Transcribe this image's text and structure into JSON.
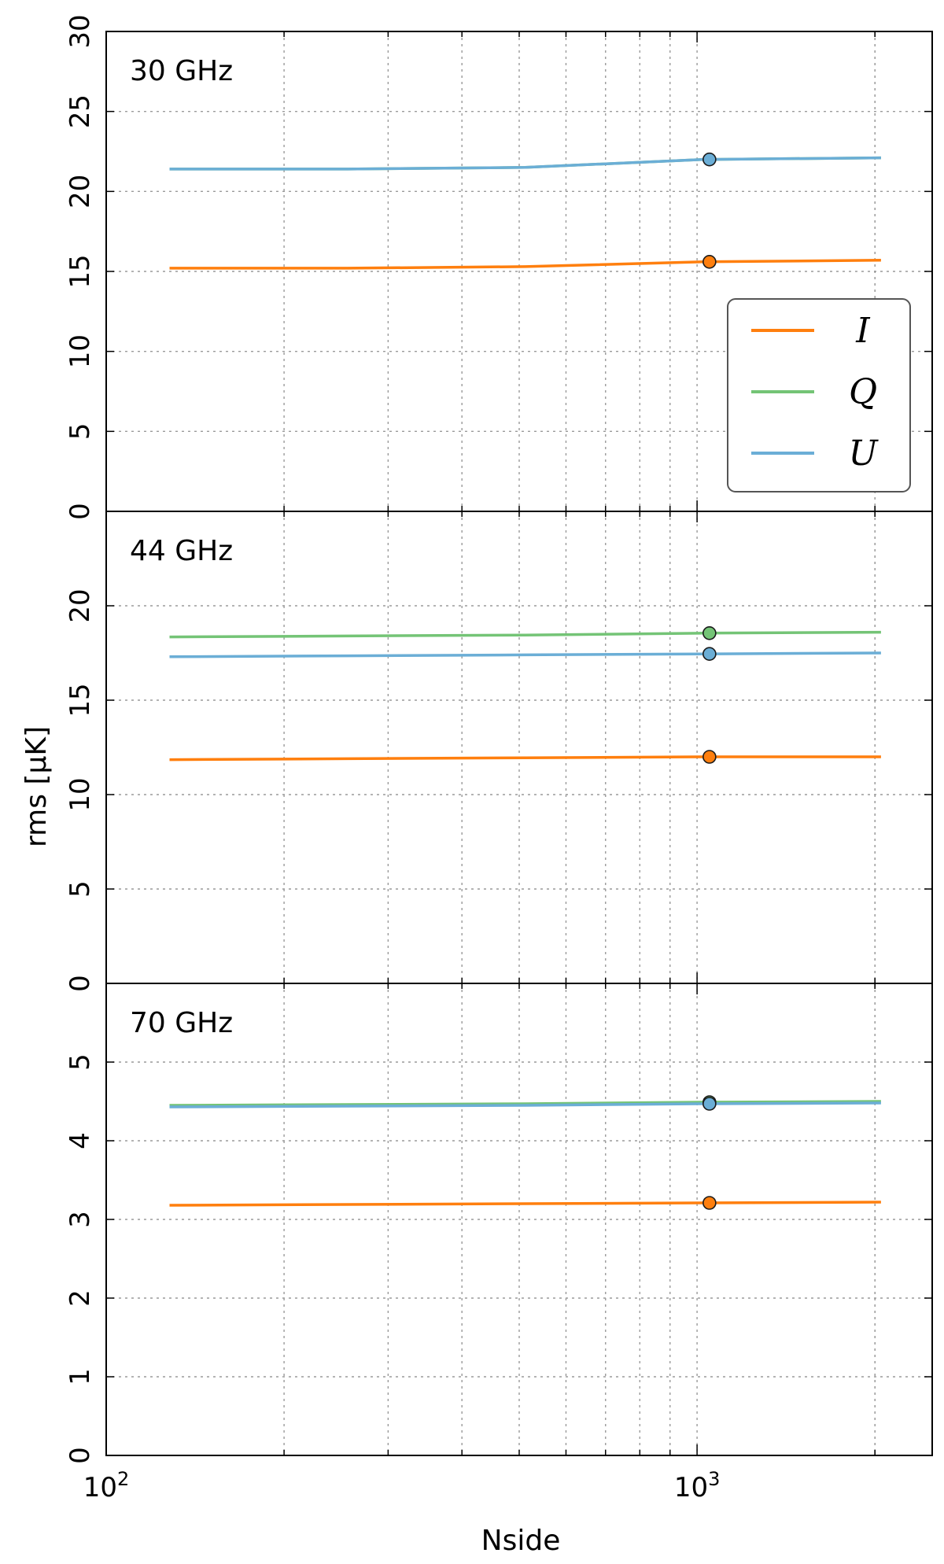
{
  "chart_data": {
    "type": "line",
    "xlabel": "Nside",
    "ylabel": "rms [μK]",
    "xscale": "log",
    "xlim": [
      100,
      2500
    ],
    "x_tick_labels": [
      {
        "value": 100,
        "base": "10",
        "exp": "2"
      },
      {
        "value": 1000,
        "base": "10",
        "exp": "3"
      }
    ],
    "grid": true,
    "legend": {
      "placement": "right, first panel",
      "entries": [
        {
          "label": "I",
          "color": "#ff7f0e"
        },
        {
          "label": "Q",
          "color": "#74c476"
        },
        {
          "label": "U",
          "color": "#6baed6"
        }
      ]
    },
    "panels": [
      {
        "label": "30 GHz",
        "ylim": [
          0,
          30
        ],
        "yticks": [
          "0",
          "5",
          "10",
          "15",
          "20",
          "25",
          "30"
        ],
        "x": [
          128,
          256,
          512,
          1024,
          2048
        ],
        "series": [
          {
            "name": "I",
            "color": "#ff7f0e",
            "values": [
              15.2,
              15.2,
              15.3,
              15.6,
              15.7
            ]
          },
          {
            "name": "Q",
            "color": "#74c476",
            "values": [
              21.4,
              21.4,
              21.5,
              22.0,
              22.1
            ]
          },
          {
            "name": "U",
            "color": "#6baed6",
            "values": [
              21.4,
              21.4,
              21.5,
              22.0,
              22.1
            ]
          }
        ],
        "markers": [
          {
            "series": "I",
            "x": 1024,
            "y": 15.6
          },
          {
            "series": "U",
            "x": 1024,
            "y": 22.0
          }
        ]
      },
      {
        "label": "44 GHz",
        "ylim": [
          0,
          25
        ],
        "yticks": [
          "0",
          "5",
          "10",
          "15",
          "20"
        ],
        "x": [
          128,
          256,
          512,
          1024,
          2048
        ],
        "series": [
          {
            "name": "I",
            "color": "#ff7f0e",
            "values": [
              11.85,
              11.9,
              11.95,
              12.0,
              12.0
            ]
          },
          {
            "name": "Q",
            "color": "#74c476",
            "values": [
              18.35,
              18.4,
              18.45,
              18.55,
              18.6
            ]
          },
          {
            "name": "U",
            "color": "#6baed6",
            "values": [
              17.3,
              17.35,
              17.4,
              17.45,
              17.5
            ]
          }
        ],
        "markers": [
          {
            "series": "I",
            "x": 1024,
            "y": 12.0
          },
          {
            "series": "Q",
            "x": 1024,
            "y": 18.55
          },
          {
            "series": "U",
            "x": 1024,
            "y": 17.45
          }
        ]
      },
      {
        "label": "70 GHz",
        "ylim": [
          0,
          6
        ],
        "yticks": [
          "0",
          "1",
          "2",
          "3",
          "4",
          "5"
        ],
        "x": [
          128,
          256,
          512,
          1024,
          2048
        ],
        "series": [
          {
            "name": "I",
            "color": "#ff7f0e",
            "values": [
              3.18,
              3.19,
              3.2,
              3.21,
              3.22
            ]
          },
          {
            "name": "Q",
            "color": "#74c476",
            "values": [
              4.45,
              4.46,
              4.47,
              4.49,
              4.5
            ]
          },
          {
            "name": "U",
            "color": "#6baed6",
            "values": [
              4.43,
              4.44,
              4.45,
              4.47,
              4.48
            ]
          }
        ],
        "markers": [
          {
            "series": "I",
            "x": 1024,
            "y": 3.21
          },
          {
            "series": "Q",
            "x": 1024,
            "y": 4.49
          },
          {
            "series": "U",
            "x": 1024,
            "y": 4.47
          }
        ]
      }
    ]
  }
}
